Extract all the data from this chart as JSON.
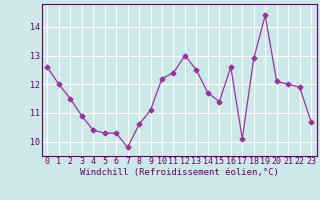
{
  "x": [
    0,
    1,
    2,
    3,
    4,
    5,
    6,
    7,
    8,
    9,
    10,
    11,
    12,
    13,
    14,
    15,
    16,
    17,
    18,
    19,
    20,
    21,
    22,
    23
  ],
  "y": [
    12.6,
    12.0,
    11.5,
    10.9,
    10.4,
    10.3,
    10.3,
    9.8,
    10.6,
    11.1,
    12.2,
    12.4,
    13.0,
    12.5,
    11.7,
    11.4,
    12.6,
    10.1,
    12.9,
    14.4,
    12.1,
    12.0,
    11.9,
    10.7
  ],
  "line_color": "#993399",
  "marker": "D",
  "marker_size": 2.5,
  "bg_color": "#cce8e8",
  "grid_color": "#ffffff",
  "xlabel": "Windchill (Refroidissement éolien,°C)",
  "xlabel_fontsize": 6.5,
  "tick_fontsize": 6.0,
  "ylim": [
    9.5,
    14.8
  ],
  "yticks": [
    10,
    11,
    12,
    13,
    14
  ],
  "xticks": [
    0,
    1,
    2,
    3,
    4,
    5,
    6,
    7,
    8,
    9,
    10,
    11,
    12,
    13,
    14,
    15,
    16,
    17,
    18,
    19,
    20,
    21,
    22,
    23
  ]
}
